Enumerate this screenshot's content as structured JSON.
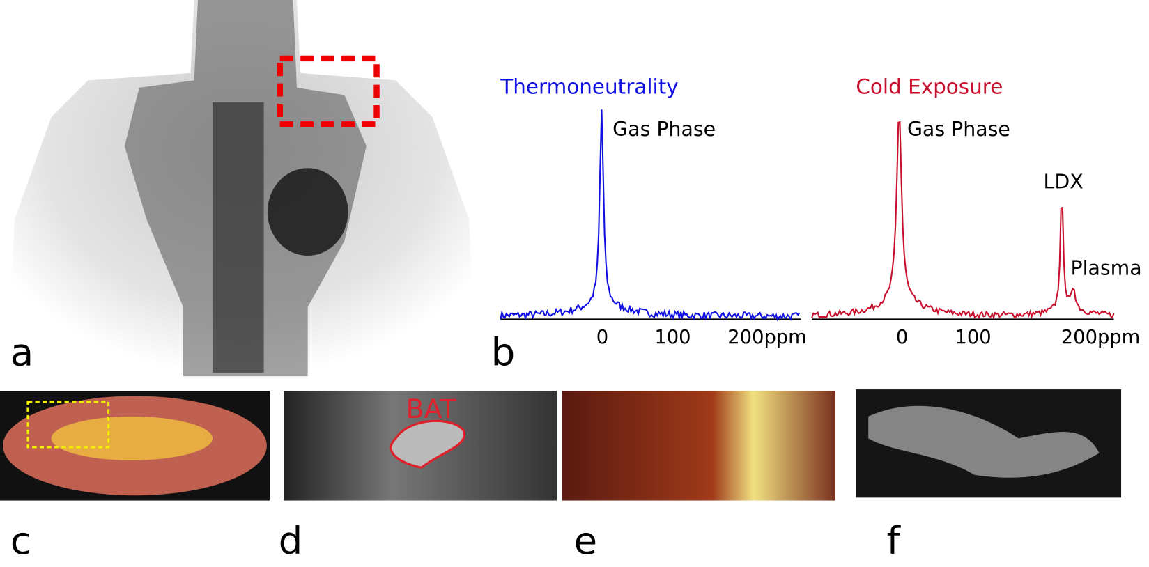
{
  "panels": {
    "a": "a",
    "b": "b",
    "c": "c",
    "d": "d",
    "e": "e",
    "f": "f"
  },
  "spectra": [
    {
      "title": "Thermoneutrality",
      "peaks": [
        "Gas Phase"
      ],
      "axis": [
        "0",
        "100",
        "200ppm"
      ]
    },
    {
      "title": "Cold Exposure",
      "peaks": [
        "Gas Phase",
        "LDX",
        "Plasma"
      ],
      "axis": [
        "0",
        "100",
        "200ppm"
      ]
    }
  ],
  "annotations": {
    "bat": "BAT"
  }
}
